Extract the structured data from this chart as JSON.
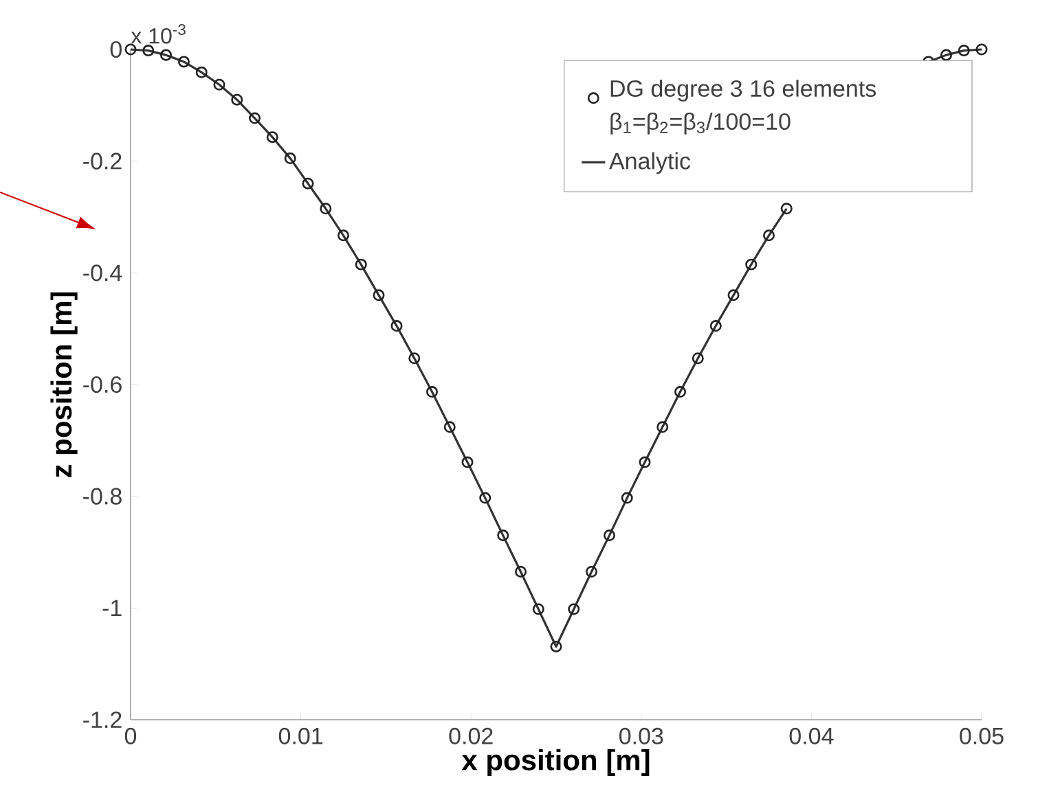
{
  "chart_data": {
    "type": "line",
    "xlabel": "x position [m]",
    "ylabel": "z position [m]",
    "annotations": [
      "x 10$^{-3}$"
    ],
    "xlim": [
      0,
      0.05
    ],
    "xticks": [
      0,
      0.01,
      0.02,
      0.03,
      0.04,
      0.05
    ],
    "ylim": [
      -1.2,
      0
    ],
    "yticks": [
      -1.2,
      -1,
      -0.8,
      -0.6,
      -0.4,
      -0.2,
      0
    ],
    "grid": false,
    "legend": "top right",
    "x": [
      0,
      0.00104,
      0.00208,
      0.00313,
      0.00417,
      0.00521,
      0.00625,
      0.00729,
      0.00833,
      0.00938,
      0.01042,
      0.01146,
      0.0125,
      0.01354,
      0.01458,
      0.01563,
      0.01667,
      0.01771,
      0.01875,
      0.01979,
      0.02083,
      0.02188,
      0.02292,
      0.02396,
      0.025,
      0.02604,
      0.02708,
      0.02813,
      0.02917,
      0.03021,
      0.03125,
      0.03229,
      0.03333,
      0.03438,
      0.03542,
      0.03646,
      0.0375,
      0.03854,
      0.03958,
      0.04063,
      0.04167,
      0.04271,
      0.04375,
      0.04479,
      0.04583,
      0.04688,
      0.04792,
      0.04896,
      0.05
    ],
    "series": [
      {
        "name": "DG degree 3 16 elements β$_{1}$=β$_{2}$=β$_{3}$/100=10",
        "type": "scatter",
        "marker": "circle",
        "color": "#222222",
        "values": [
          0,
          -0.002,
          -0.01,
          -0.022,
          -0.041,
          -0.063,
          -0.09,
          -0.123,
          -0.157,
          -0.195,
          -0.24,
          -0.285,
          -0.333,
          -0.385,
          -0.44,
          -0.495,
          -0.553,
          -0.613,
          -0.676,
          -0.739,
          -0.803,
          -0.87,
          -0.935,
          -1.002,
          -1.069,
          -1.002,
          -0.935,
          -0.87,
          -0.803,
          -0.739,
          -0.676,
          -0.613,
          -0.553,
          -0.495,
          -0.44,
          -0.385,
          -0.333,
          -0.285,
          null,
          null,
          null,
          null,
          null,
          null,
          null,
          -0.022,
          -0.01,
          -0.002,
          0
        ]
      },
      {
        "name": "Analytic",
        "marker": "none",
        "line_style": "solid",
        "color": "#333333",
        "values": [
          0,
          -0.002,
          -0.01,
          -0.022,
          -0.041,
          -0.063,
          -0.09,
          -0.123,
          -0.157,
          -0.195,
          -0.24,
          -0.285,
          -0.333,
          -0.385,
          -0.44,
          -0.495,
          -0.553,
          -0.613,
          -0.676,
          -0.739,
          -0.803,
          -0.87,
          -0.935,
          -1.002,
          -1.069,
          -1.002,
          -0.935,
          -0.87,
          -0.803,
          -0.739,
          -0.676,
          -0.613,
          -0.553,
          -0.495,
          -0.44,
          -0.385,
          -0.333,
          -0.285,
          null,
          null,
          null,
          null,
          null,
          null,
          null,
          -0.022,
          -0.01,
          -0.002,
          0
        ]
      }
    ]
  }
}
